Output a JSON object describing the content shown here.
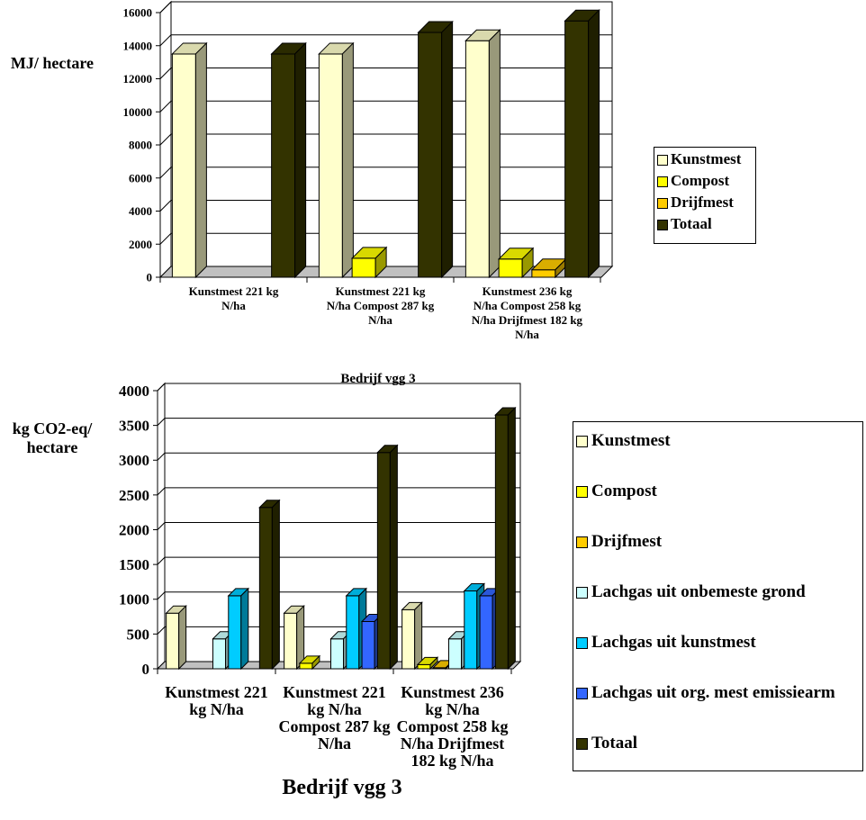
{
  "colors": {
    "kunstmest": "#FFFFCC",
    "compost": "#FFFF00",
    "drijfmest": "#FFCC00",
    "lachgas_onbemest": "#CCFFFF",
    "lachgas_kunstmest": "#00CCFF",
    "lachgas_org": "#3366FF",
    "totaal": "#333300"
  },
  "chart_data": [
    {
      "type": "bar",
      "title": "",
      "ylabel": "MJ/ hectare",
      "ylim": [
        0,
        16000
      ],
      "yticks": [
        "0",
        "2000",
        "4000",
        "6000",
        "8000",
        "10000",
        "12000",
        "14000",
        "16000"
      ],
      "categories": [
        "Kunstmest 221 kg N/ha",
        "Kunstmest 221 kg N/ha Compost 287 kg N/ha",
        "Kunstmest 236 kg N/ha Compost 258 kg N/ha Drijfmest 182 kg N/ha"
      ],
      "category_lines": [
        [
          "Kunstmest 221 kg",
          "N/ha"
        ],
        [
          "Kunstmest 221 kg",
          "N/ha Compost 287 kg",
          "N/ha"
        ],
        [
          "Kunstmest 236 kg",
          "N/ha Compost 258 kg",
          "N/ha Drijfmest 182 kg",
          "N/ha"
        ]
      ],
      "series": [
        {
          "name": "Kunstmest",
          "color_key": "kunstmest",
          "values": [
            13500,
            13500,
            14300
          ]
        },
        {
          "name": "Compost",
          "color_key": "compost",
          "values": [
            0,
            1150,
            1100
          ]
        },
        {
          "name": "Drijfmest",
          "color_key": "drijfmest",
          "values": [
            0,
            0,
            450
          ]
        },
        {
          "name": "Totaal",
          "color_key": "totaal",
          "values": [
            13500,
            14800,
            15500
          ]
        }
      ],
      "grid": true,
      "legend": "right"
    },
    {
      "type": "bar",
      "title": "Bedrijf vgg 3",
      "ylabel": "kg CO2-eq/ hectare",
      "ylim": [
        0,
        4000
      ],
      "yticks": [
        "0",
        "500",
        "1000",
        "1500",
        "2000",
        "2500",
        "3000",
        "3500",
        "4000"
      ],
      "categories": [
        "Kunstmest 221 kg N/ha",
        "Kunstmest 221 kg N/ha Compost 287 kg N/ha",
        "Kunstmest 236 kg N/ha Compost 258 kg N/ha Drijfmest 182 kg N/ha"
      ],
      "category_lines": [
        [
          "Kunstmest 221",
          "kg N/ha"
        ],
        [
          "Kunstmest 221",
          "kg N/ha",
          "Compost 287 kg",
          "N/ha"
        ],
        [
          "Kunstmest 236",
          "kg N/ha",
          "Compost 258 kg",
          "N/ha Drijfmest",
          "182 kg N/ha"
        ]
      ],
      "series": [
        {
          "name": "Kunstmest",
          "color_key": "kunstmest",
          "values": [
            800,
            800,
            850
          ]
        },
        {
          "name": "Compost",
          "color_key": "compost",
          "values": [
            0,
            80,
            60
          ]
        },
        {
          "name": "Drijfmest",
          "color_key": "drijfmest",
          "values": [
            0,
            0,
            15
          ]
        },
        {
          "name": "Lachgas uit onbemeste grond",
          "color_key": "lachgas_onbemest",
          "values": [
            430,
            430,
            430
          ]
        },
        {
          "name": "Lachgas uit kunstmest",
          "color_key": "lachgas_kunstmest",
          "values": [
            1050,
            1050,
            1120
          ]
        },
        {
          "name": "Lachgas uit org. mest emissiearm",
          "color_key": "lachgas_org",
          "values": [
            0,
            680,
            1050
          ]
        },
        {
          "name": "Totaal",
          "color_key": "totaal",
          "values": [
            2320,
            3110,
            3650
          ]
        }
      ],
      "grid": true,
      "legend": "right"
    }
  ],
  "texts": {
    "chart1_title": "Bedrijf vgg 3",
    "legend2_last_line": "emissiearm"
  }
}
